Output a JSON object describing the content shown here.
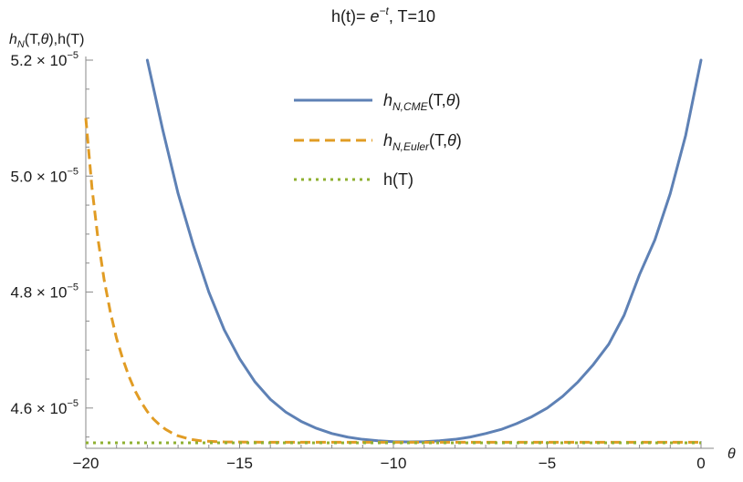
{
  "chart_data": {
    "type": "line",
    "title": {
      "prefix": "h(t)= ",
      "base": "e",
      "exponent": "−t",
      "suffix": ", T=10"
    },
    "ylabel": {
      "h": "h",
      "sub": "N",
      "rest": "(T,",
      "theta": "θ",
      "end": "),h(T)"
    },
    "xlabel": "θ",
    "xlim": [
      -20,
      0
    ],
    "ylim": [
      4.54e-05,
      5.2e-05
    ],
    "x_ticks": [
      {
        "value": -20,
        "label": "−20"
      },
      {
        "value": -15,
        "label": "−15"
      },
      {
        "value": -10,
        "label": "−10"
      },
      {
        "value": -5,
        "label": "−5"
      },
      {
        "value": 0,
        "label": "0"
      }
    ],
    "y_ticks": [
      {
        "value": 4.6e-05,
        "mantissa": "4.6",
        "exp": "−5"
      },
      {
        "value": 4.8e-05,
        "mantissa": "4.8",
        "exp": "−5"
      },
      {
        "value": 5e-05,
        "mantissa": "5.0",
        "exp": "−5"
      },
      {
        "value": 5.2e-05,
        "mantissa": "5.2",
        "exp": "−5"
      }
    ],
    "times_sign": "×",
    "ten": "10",
    "legend_position": "top-center",
    "series": [
      {
        "key": "cme",
        "legend": {
          "h": "h",
          "sub": "N,CME",
          "rest": "(T,",
          "theta": "θ",
          "end": ")"
        },
        "color": "#5E81B5",
        "style": "solid",
        "x": [
          -18,
          -17.5,
          -17,
          -16.5,
          -16,
          -15.5,
          -15,
          -14.5,
          -14,
          -13.5,
          -13,
          -12.5,
          -12,
          -11.5,
          -11,
          -10.5,
          -10,
          -9.5,
          -9,
          -8.5,
          -8,
          -7.5,
          -7,
          -6.5,
          -6,
          -5.5,
          -5,
          -4.5,
          -4,
          -3.5,
          -3,
          -2.5,
          -2,
          -1.5,
          -1,
          -0.5,
          0
        ],
        "y": [
          5.2e-05,
          5.08e-05,
          4.97e-05,
          4.88e-05,
          4.8e-05,
          4.735e-05,
          4.685e-05,
          4.645e-05,
          4.615e-05,
          4.593e-05,
          4.577e-05,
          4.565e-05,
          4.556e-05,
          4.55e-05,
          4.546e-05,
          4.5435e-05,
          4.542e-05,
          4.5415e-05,
          4.542e-05,
          4.5435e-05,
          4.546e-05,
          4.55e-05,
          4.556e-05,
          4.563e-05,
          4.573e-05,
          4.585e-05,
          4.6e-05,
          4.62e-05,
          4.645e-05,
          4.675e-05,
          4.71e-05,
          4.76e-05,
          4.83e-05,
          4.89e-05,
          4.97e-05,
          5.07e-05,
          5.2e-05
        ]
      },
      {
        "key": "euler",
        "legend": {
          "h": "h",
          "sub": "N,Euler",
          "rest": "(T,",
          "theta": "θ",
          "end": ")"
        },
        "color": "#E19C24",
        "style": "dashed",
        "x": [
          -20,
          -19.8,
          -19.6,
          -19.4,
          -19.2,
          -19,
          -18.8,
          -18.6,
          -18.4,
          -18.2,
          -18,
          -17.8,
          -17.6,
          -17.4,
          -17.2,
          -17,
          -16.6,
          -16.2,
          -15.5,
          -14,
          -12,
          -10,
          -8,
          -6,
          -4,
          -2,
          0
        ],
        "y": [
          5.1e-05,
          4.98e-05,
          4.89e-05,
          4.82e-05,
          4.765e-05,
          4.72e-05,
          4.685e-05,
          4.655e-05,
          4.63e-05,
          4.61e-05,
          4.594e-05,
          4.581e-05,
          4.571e-05,
          4.563e-05,
          4.557e-05,
          4.552e-05,
          4.546e-05,
          4.543e-05,
          4.5415e-05,
          4.541e-05,
          4.541e-05,
          4.541e-05,
          4.541e-05,
          4.541e-05,
          4.541e-05,
          4.541e-05,
          4.541e-05
        ]
      },
      {
        "key": "exact",
        "legend": {
          "text": "h(T)"
        },
        "color": "#8FB032",
        "style": "dotted",
        "x": [
          -20,
          0
        ],
        "y": [
          4.54e-05,
          4.54e-05
        ]
      }
    ]
  }
}
